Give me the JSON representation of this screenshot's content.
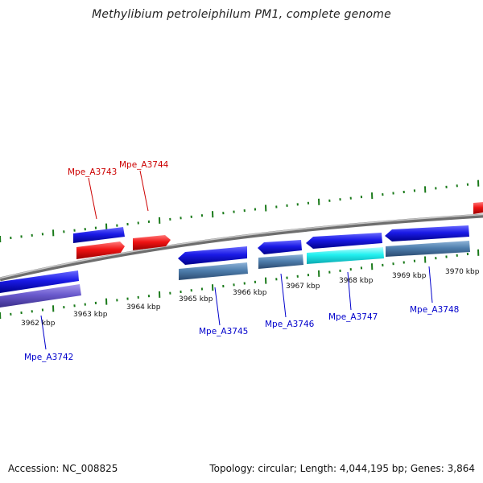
{
  "title": "Methylibium petroleiphilum PM1, complete genome",
  "footer": {
    "accession": "Accession: NC_008825",
    "topology": "Topology: circular; Length: 4,044,195 bp; Genes: 3,864"
  },
  "colors": {
    "backbone": "#8a8a8a",
    "tick_green": "#1a7a1a",
    "label_red": "#cc0000",
    "label_blue": "#0000cc",
    "gene_blue": "#1010e0",
    "gene_red": "#ee1010",
    "gene_cyan": "#19f0f0",
    "cds_steel": "#4f7fae",
    "cds_purple": "#6a5acd"
  },
  "ruler": {
    "ticks": [
      "3962 kbp",
      "3963 kbp",
      "3964 kbp",
      "3965 kbp",
      "3966 kbp",
      "3967 kbp",
      "3968 kbp",
      "3969 kbp",
      "3970 kbp"
    ]
  },
  "genes": {
    "plus": [
      {
        "label": "Mpe_A3743"
      },
      {
        "label": "Mpe_A3744"
      }
    ],
    "minus": [
      {
        "label": "Mpe_A3742"
      },
      {
        "label": "Mpe_A3745"
      },
      {
        "label": "Mpe_A3746"
      },
      {
        "label": "Mpe_A3747"
      },
      {
        "label": "Mpe_A3748"
      }
    ]
  }
}
